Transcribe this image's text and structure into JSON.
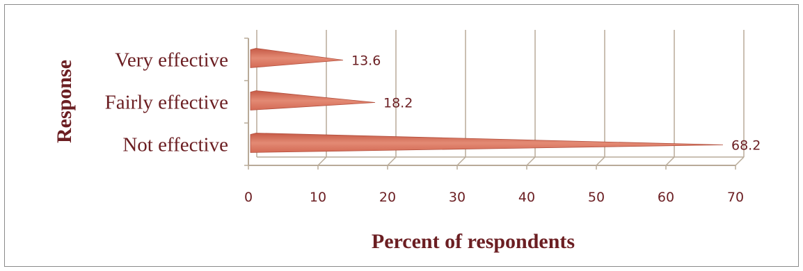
{
  "chart_data": {
    "type": "bar",
    "orientation": "horizontal",
    "categories": [
      "Very effective",
      "Fairly effective",
      "Not effective"
    ],
    "values": [
      13.6,
      18.2,
      68.2
    ],
    "data_labels": [
      "13.6",
      "18.2",
      "68.2"
    ],
    "xlabel": "Percent of respondents",
    "ylabel": "Response",
    "xlim": [
      0,
      70
    ],
    "xticks": [
      "0",
      "10",
      "20",
      "30",
      "40",
      "50",
      "60",
      "70"
    ],
    "grid": true,
    "bar_color": "#d9705a",
    "text_color": "#6b1e22",
    "grid_color": "#b8aa98"
  }
}
